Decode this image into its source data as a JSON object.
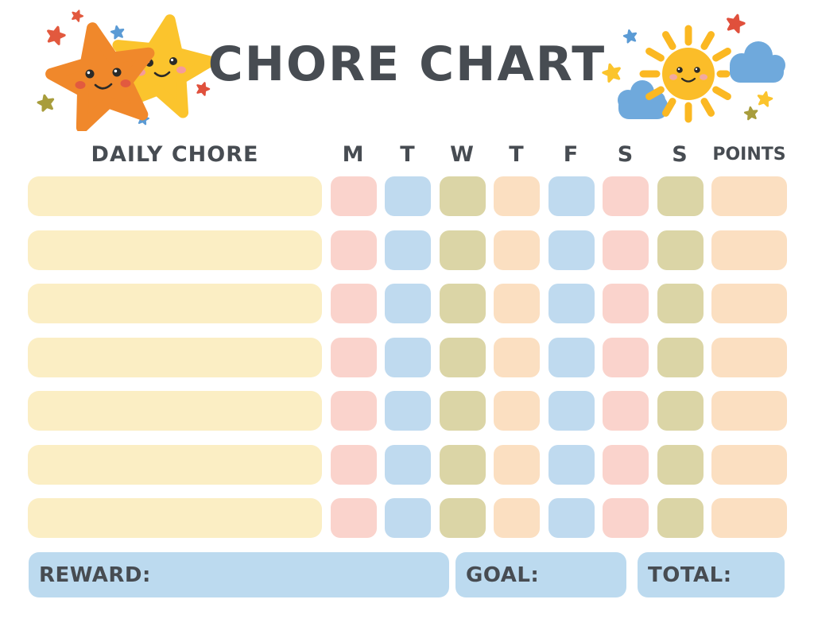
{
  "header": {
    "title": "CHORE CHART",
    "title_color": "#474C52",
    "left_illustration": {
      "name": "two-smiling-stars",
      "big_star_orange": "#F0882B",
      "big_star_yellow": "#FBC42D",
      "cheek_orange_star": "#E25A3F",
      "cheek_yellow_star": "#F59B9B",
      "face_color": "#2A2A28",
      "small_stars": [
        {
          "color": "#E2593E"
        },
        {
          "color": "#E2593E"
        },
        {
          "color": "#5B9BD5"
        },
        {
          "color": "#A89D3C"
        },
        {
          "color": "#5B9BD5"
        },
        {
          "color": "#E0503C"
        }
      ]
    },
    "right_illustration": {
      "name": "smiling-sun-with-clouds",
      "sun_color": "#FBBD29",
      "ray_color": "#FBB822",
      "cloud_color": "#6FA9DC",
      "cheek_color": "#F2A9A0",
      "face_color": "#2A2A28",
      "small_stars": [
        {
          "color": "#E0503C"
        },
        {
          "color": "#5B9BD5"
        },
        {
          "color": "#FBC42D"
        },
        {
          "color": "#FBC42D"
        },
        {
          "color": "#A89D3C"
        }
      ]
    }
  },
  "table": {
    "chore_header": "DAILY CHORE",
    "day_headers": [
      "M",
      "T",
      "W",
      "T",
      "F",
      "S",
      "S"
    ],
    "day_names": [
      "mon",
      "tue",
      "wed",
      "thu",
      "fri",
      "sat",
      "sun"
    ],
    "points_header": "POINTS",
    "header_color": "#474C52",
    "row_count": 7,
    "colors": {
      "chore_cell": "#FBEEC4",
      "day_cells": [
        "#FAD3CC",
        "#BFDAEF",
        "#DBD5A6",
        "#FBDFC1",
        "#BFDAEF",
        "#FAD3CC",
        "#DBD5A6"
      ],
      "points_cell": "#FBDFC1"
    },
    "rows": [
      {
        "chore": "",
        "days": [
          "",
          "",
          "",
          "",
          "",
          "",
          ""
        ],
        "points": ""
      },
      {
        "chore": "",
        "days": [
          "",
          "",
          "",
          "",
          "",
          "",
          ""
        ],
        "points": ""
      },
      {
        "chore": "",
        "days": [
          "",
          "",
          "",
          "",
          "",
          "",
          ""
        ],
        "points": ""
      },
      {
        "chore": "",
        "days": [
          "",
          "",
          "",
          "",
          "",
          "",
          ""
        ],
        "points": ""
      },
      {
        "chore": "",
        "days": [
          "",
          "",
          "",
          "",
          "",
          "",
          ""
        ],
        "points": ""
      },
      {
        "chore": "",
        "days": [
          "",
          "",
          "",
          "",
          "",
          "",
          ""
        ],
        "points": ""
      },
      {
        "chore": "",
        "days": [
          "",
          "",
          "",
          "",
          "",
          "",
          ""
        ],
        "points": ""
      }
    ]
  },
  "footer": {
    "reward_label": "REWARD:",
    "goal_label": "GOAL:",
    "total_label": "TOTAL:",
    "bar_color": "#BCDAEF",
    "label_color": "#474C52"
  }
}
